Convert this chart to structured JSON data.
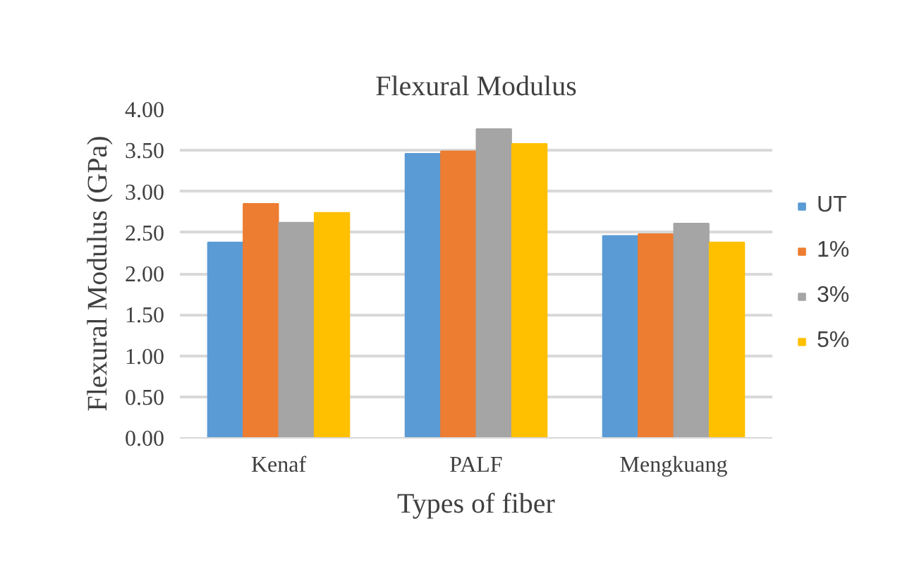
{
  "chart_data": {
    "type": "bar",
    "title": "Flexural Modulus",
    "xlabel": "Types of fiber",
    "ylabel": "Flexural Modulus (GPa)",
    "categories": [
      "Kenaf",
      "PALF",
      "Mengkuang"
    ],
    "series": [
      {
        "name": "UT",
        "color": "#5b9bd5",
        "values": [
          2.38,
          3.46,
          2.46
        ]
      },
      {
        "name": "1%",
        "color": "#ed7d31",
        "values": [
          2.85,
          3.49,
          2.48
        ]
      },
      {
        "name": "3%",
        "color": "#a5a5a5",
        "values": [
          2.62,
          3.76,
          2.61
        ]
      },
      {
        "name": "5%",
        "color": "#ffc000",
        "values": [
          2.74,
          3.58,
          2.38
        ]
      }
    ],
    "ylim": [
      0,
      4
    ],
    "yticks": [
      {
        "value": 0,
        "label": "0.00"
      },
      {
        "value": 0.5,
        "label": "0.50"
      },
      {
        "value": 1,
        "label": "1.00"
      },
      {
        "value": 1.5,
        "label": "1.50"
      },
      {
        "value": 2,
        "label": "2.00"
      },
      {
        "value": 2.5,
        "label": "2.50"
      },
      {
        "value": 3,
        "label": "3.00"
      },
      {
        "value": 3.5,
        "label": "3.50"
      },
      {
        "value": 4,
        "label": "4.00"
      }
    ],
    "grid": "y",
    "legend": "right"
  }
}
